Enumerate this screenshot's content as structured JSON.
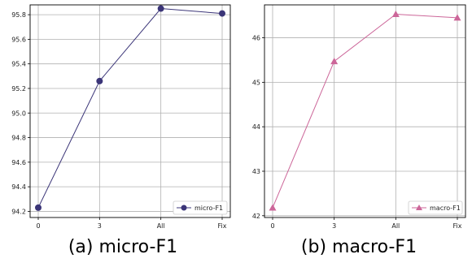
{
  "chart_data": [
    {
      "type": "line",
      "title": "",
      "xlabel": "",
      "ylabel": "",
      "caption": "(a)  micro-F1",
      "categories": [
        "0",
        "3",
        "All",
        "Fix"
      ],
      "series": [
        {
          "name": "micro-F1",
          "values": [
            94.23,
            95.26,
            95.85,
            95.81
          ],
          "color": "#3b3578",
          "marker": "circle"
        }
      ],
      "ylim": [
        94.15,
        95.88
      ],
      "yticks": [
        "94.2",
        "94.4",
        "94.6",
        "94.8",
        "95.0",
        "95.2",
        "95.4",
        "95.6",
        "95.8"
      ],
      "grid": true,
      "legend": "lower-right"
    },
    {
      "type": "line",
      "title": "",
      "xlabel": "",
      "ylabel": "",
      "caption": "(b)  macro-F1",
      "categories": [
        "0",
        "3",
        "All",
        "Fix"
      ],
      "series": [
        {
          "name": "macro-F1",
          "values": [
            42.18,
            45.47,
            46.53,
            46.45
          ],
          "color": "#cc6699",
          "marker": "triangle"
        }
      ],
      "ylim": [
        41.96,
        46.74
      ],
      "yticks": [
        "42",
        "43",
        "44",
        "45",
        "46"
      ],
      "grid": true,
      "legend": "lower-right"
    }
  ]
}
